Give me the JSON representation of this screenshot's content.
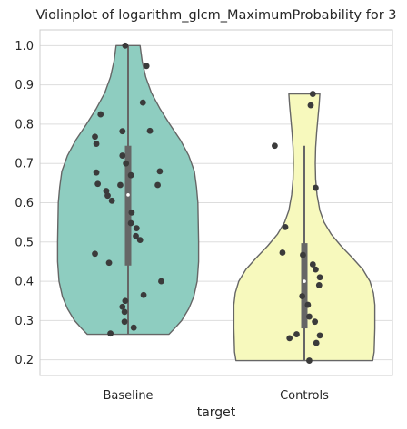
{
  "chart_data": {
    "type": "violin",
    "title": "Violinplot of logarithm_glcm_MaximumProbability for 3",
    "xlabel": "target",
    "ylabel": "",
    "categories": [
      "Baseline",
      "Controls"
    ],
    "ylim": [
      0.16,
      1.04
    ],
    "yticks": [
      0.2,
      0.3,
      0.4,
      0.5,
      0.6,
      0.7,
      0.8,
      0.9,
      1.0
    ],
    "ytick_labels": [
      "0.2",
      "0.3",
      "0.4",
      "0.5",
      "0.6",
      "0.7",
      "0.8",
      "0.9",
      "1.0"
    ],
    "grid": true,
    "groups": [
      {
        "category": "Baseline",
        "color": "#8ecdc0",
        "cut_min": 0.265,
        "cut_max": 1.0,
        "median": 0.62,
        "q1": 0.44,
        "q3": 0.745,
        "whisker_low": 0.265,
        "whisker_high": 1.0,
        "density": [
          [
            0.265,
            0.58
          ],
          [
            0.28,
            0.66
          ],
          [
            0.3,
            0.76
          ],
          [
            0.33,
            0.86
          ],
          [
            0.36,
            0.93
          ],
          [
            0.4,
            0.98
          ],
          [
            0.45,
            1.0
          ],
          [
            0.5,
            1.0
          ],
          [
            0.55,
            0.995
          ],
          [
            0.6,
            0.99
          ],
          [
            0.64,
            0.97
          ],
          [
            0.68,
            0.94
          ],
          [
            0.72,
            0.86
          ],
          [
            0.76,
            0.74
          ],
          [
            0.8,
            0.59
          ],
          [
            0.84,
            0.45
          ],
          [
            0.88,
            0.33
          ],
          [
            0.92,
            0.25
          ],
          [
            0.96,
            0.2
          ],
          [
            1.0,
            0.17
          ]
        ],
        "points": [
          {
            "jitter": -0.04,
            "y": 1.0
          },
          {
            "jitter": 0.26,
            "y": 0.948
          },
          {
            "jitter": 0.21,
            "y": 0.855
          },
          {
            "jitter": -0.39,
            "y": 0.825
          },
          {
            "jitter": 0.31,
            "y": 0.783
          },
          {
            "jitter": -0.08,
            "y": 0.782
          },
          {
            "jitter": -0.47,
            "y": 0.768
          },
          {
            "jitter": -0.45,
            "y": 0.75
          },
          {
            "jitter": -0.08,
            "y": 0.72
          },
          {
            "jitter": -0.03,
            "y": 0.7
          },
          {
            "jitter": 0.45,
            "y": 0.68
          },
          {
            "jitter": -0.45,
            "y": 0.677
          },
          {
            "jitter": 0.04,
            "y": 0.67
          },
          {
            "jitter": -0.43,
            "y": 0.648
          },
          {
            "jitter": 0.42,
            "y": 0.645
          },
          {
            "jitter": -0.11,
            "y": 0.645
          },
          {
            "jitter": -0.31,
            "y": 0.63
          },
          {
            "jitter": -0.29,
            "y": 0.618
          },
          {
            "jitter": -0.23,
            "y": 0.605
          },
          {
            "jitter": 0.05,
            "y": 0.575
          },
          {
            "jitter": 0.04,
            "y": 0.548
          },
          {
            "jitter": 0.12,
            "y": 0.535
          },
          {
            "jitter": 0.11,
            "y": 0.515
          },
          {
            "jitter": 0.17,
            "y": 0.505
          },
          {
            "jitter": -0.47,
            "y": 0.47
          },
          {
            "jitter": -0.27,
            "y": 0.447
          },
          {
            "jitter": 0.47,
            "y": 0.4
          },
          {
            "jitter": 0.22,
            "y": 0.365
          },
          {
            "jitter": -0.04,
            "y": 0.35
          },
          {
            "jitter": -0.08,
            "y": 0.335
          },
          {
            "jitter": -0.05,
            "y": 0.322
          },
          {
            "jitter": -0.05,
            "y": 0.297
          },
          {
            "jitter": 0.08,
            "y": 0.282
          },
          {
            "jitter": -0.25,
            "y": 0.267
          }
        ]
      },
      {
        "category": "Controls",
        "color": "#f7f9bd",
        "cut_min": 0.198,
        "cut_max": 0.877,
        "median": 0.4,
        "q1": 0.28,
        "q3": 0.497,
        "whisker_low": 0.198,
        "whisker_high": 0.745,
        "density": [
          [
            0.198,
            0.97
          ],
          [
            0.22,
            0.99
          ],
          [
            0.25,
            0.995
          ],
          [
            0.28,
            1.0
          ],
          [
            0.31,
            1.0
          ],
          [
            0.34,
            1.0
          ],
          [
            0.37,
            0.98
          ],
          [
            0.4,
            0.93
          ],
          [
            0.43,
            0.83
          ],
          [
            0.46,
            0.68
          ],
          [
            0.49,
            0.52
          ],
          [
            0.52,
            0.38
          ],
          [
            0.55,
            0.28
          ],
          [
            0.58,
            0.22
          ],
          [
            0.62,
            0.18
          ],
          [
            0.66,
            0.16
          ],
          [
            0.7,
            0.155
          ],
          [
            0.74,
            0.16
          ],
          [
            0.78,
            0.175
          ],
          [
            0.82,
            0.195
          ],
          [
            0.85,
            0.21
          ],
          [
            0.877,
            0.22
          ]
        ],
        "points": [
          {
            "jitter": 0.12,
            "y": 0.877
          },
          {
            "jitter": 0.09,
            "y": 0.848
          },
          {
            "jitter": -0.42,
            "y": 0.745
          },
          {
            "jitter": 0.16,
            "y": 0.638
          },
          {
            "jitter": -0.27,
            "y": 0.538
          },
          {
            "jitter": -0.31,
            "y": 0.473
          },
          {
            "jitter": -0.02,
            "y": 0.467
          },
          {
            "jitter": 0.12,
            "y": 0.443
          },
          {
            "jitter": 0.16,
            "y": 0.43
          },
          {
            "jitter": 0.22,
            "y": 0.41
          },
          {
            "jitter": 0.21,
            "y": 0.39
          },
          {
            "jitter": -0.03,
            "y": 0.362
          },
          {
            "jitter": 0.05,
            "y": 0.34
          },
          {
            "jitter": 0.07,
            "y": 0.31
          },
          {
            "jitter": 0.15,
            "y": 0.297
          },
          {
            "jitter": -0.11,
            "y": 0.265
          },
          {
            "jitter": -0.21,
            "y": 0.255
          },
          {
            "jitter": 0.17,
            "y": 0.243
          },
          {
            "jitter": 0.22,
            "y": 0.262
          },
          {
            "jitter": 0.07,
            "y": 0.198
          }
        ]
      }
    ]
  }
}
